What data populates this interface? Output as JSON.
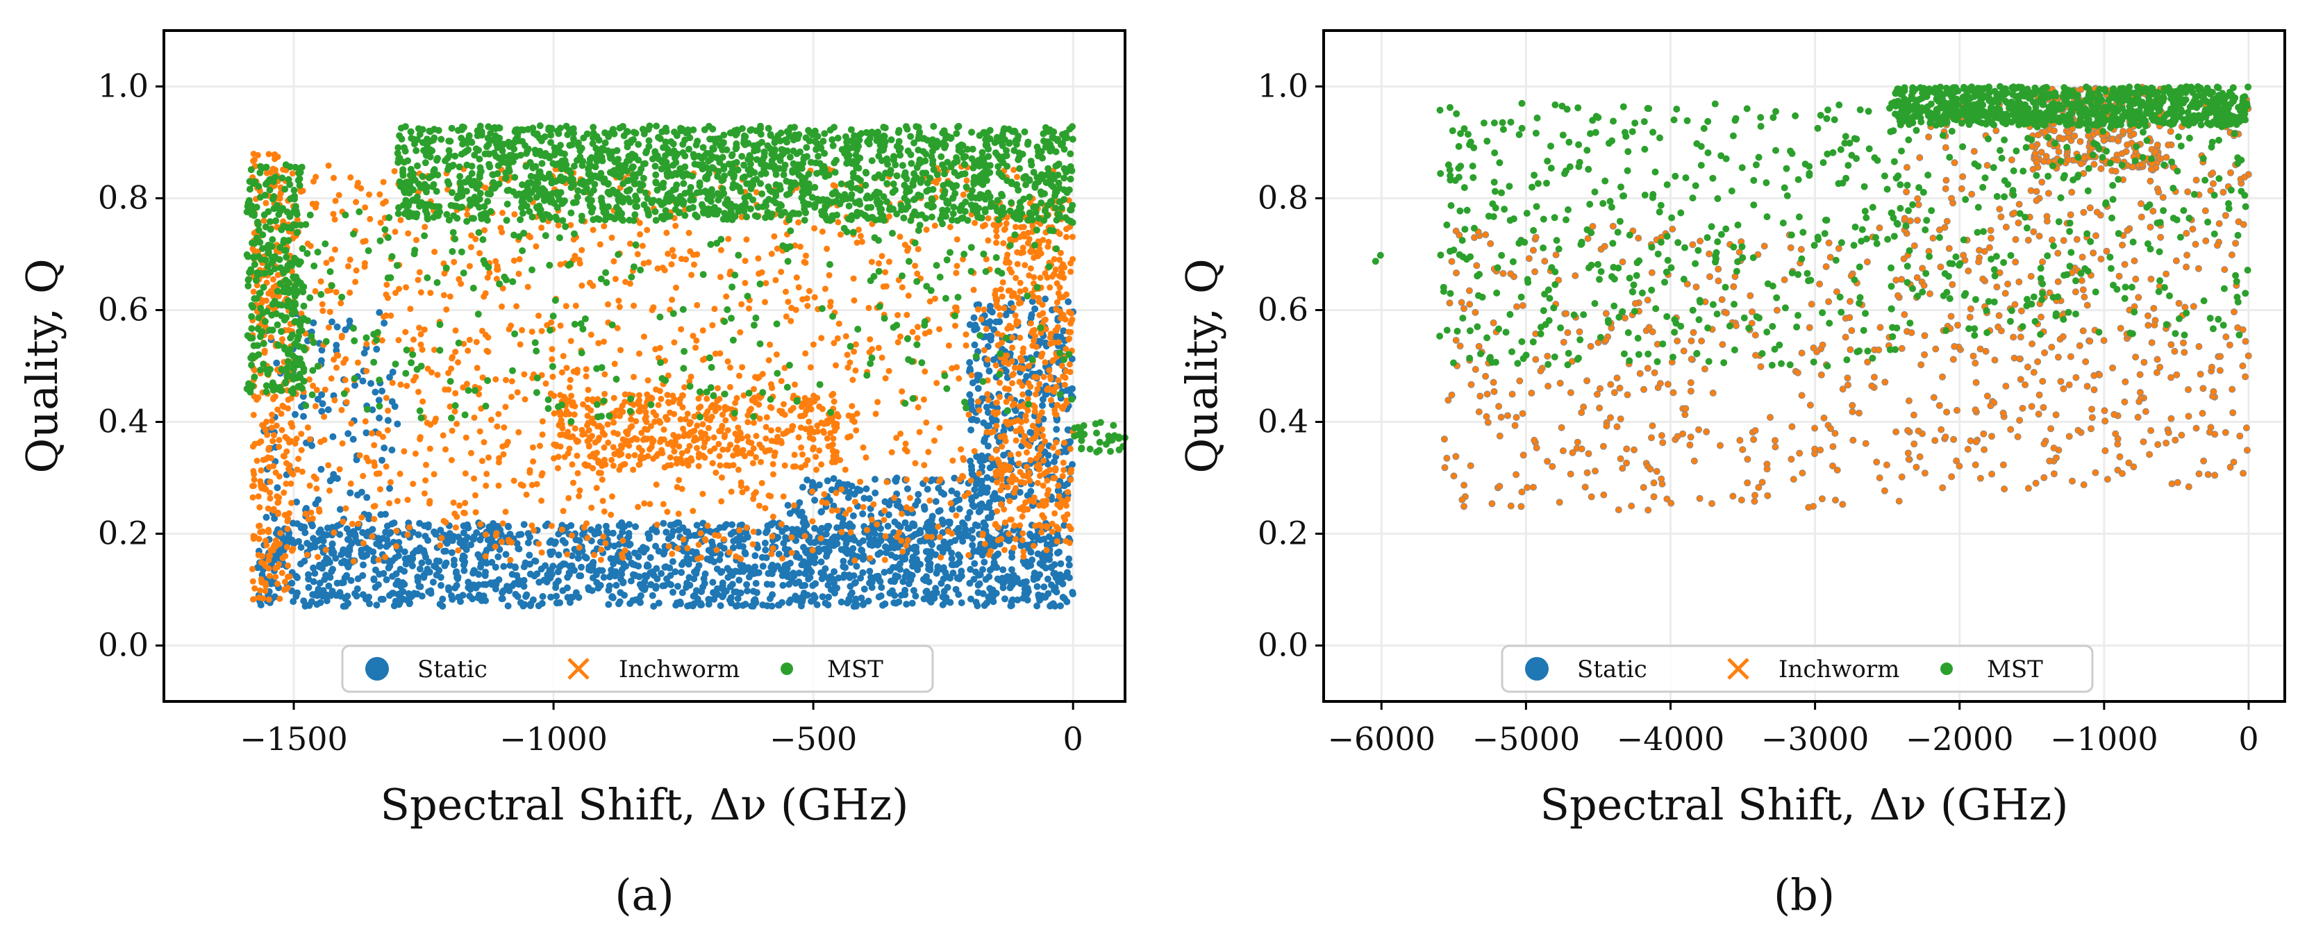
{
  "chart_data": [
    {
      "panel": "a",
      "caption": "(a)",
      "type": "scatter",
      "xlabel": "Spectral Shift, Δν (GHz)",
      "ylabel": "Quality, Q",
      "xlim": [
        -1750,
        100
      ],
      "ylim": [
        -0.1,
        1.1
      ],
      "xticks": [
        -1500,
        -1000,
        -500,
        0
      ],
      "xtick_labels": [
        "−1500",
        "−1000",
        "−500",
        "0"
      ],
      "yticks": [
        0.0,
        0.2,
        0.4,
        0.6,
        0.8,
        1.0
      ],
      "ytick_labels": [
        "0.0",
        "0.2",
        "0.4",
        "0.6",
        "0.8",
        "1.0"
      ],
      "grid": true,
      "legend_position": "bottom-center",
      "series": [
        {
          "name": "Static",
          "marker": "circle",
          "color": "#1f77b4",
          "regions": [
            {
              "x": [
                -1570,
                0
              ],
              "y": [
                0.07,
                0.22
              ],
              "count": 1600
            },
            {
              "x": [
                -550,
                -150
              ],
              "y": [
                0.15,
                0.3
              ],
              "count": 250
            },
            {
              "x": [
                -200,
                0
              ],
              "y": [
                0.25,
                0.62
              ],
              "count": 350
            },
            {
              "x": [
                -1560,
                -1300
              ],
              "y": [
                0.2,
                0.6
              ],
              "count": 120
            }
          ]
        },
        {
          "name": "Inchworm",
          "marker": "x",
          "color": "#ff7f0e",
          "regions": [
            {
              "x": [
                -1580,
                -1500
              ],
              "y": [
                0.08,
                0.88
              ],
              "count": 350
            },
            {
              "x": [
                -1500,
                0
              ],
              "y": [
                0.15,
                0.86
              ],
              "count": 1300
            },
            {
              "x": [
                -1000,
                -450
              ],
              "y": [
                0.32,
                0.45
              ],
              "count": 400
            },
            {
              "x": [
                -150,
                0
              ],
              "y": [
                0.2,
                0.8
              ],
              "count": 350
            }
          ]
        },
        {
          "name": "MST",
          "marker": "dot",
          "color": "#2ca02c",
          "regions": [
            {
              "x": [
                -1300,
                0
              ],
              "y": [
                0.76,
                0.93
              ],
              "count": 1700
            },
            {
              "x": [
                -1590,
                -1480
              ],
              "y": [
                0.45,
                0.86
              ],
              "count": 300
            },
            {
              "x": [
                -1500,
                0
              ],
              "y": [
                0.4,
                0.78
              ],
              "count": 300
            },
            {
              "x": [
                0,
                100
              ],
              "y": [
                0.34,
                0.4
              ],
              "count": 30
            }
          ]
        }
      ]
    },
    {
      "panel": "b",
      "caption": "(b)",
      "type": "scatter",
      "xlabel": "Spectral Shift, Δν (GHz)",
      "ylabel": "Quality, Q",
      "xlim": [
        -6400,
        250
      ],
      "ylim": [
        -0.1,
        1.1
      ],
      "xticks": [
        -6000,
        -5000,
        -4000,
        -3000,
        -2000,
        -1000,
        0
      ],
      "xtick_labels": [
        "−6000",
        "−5000",
        "−4000",
        "−3000",
        "−2000",
        "−1000",
        "0"
      ],
      "yticks": [
        0.0,
        0.2,
        0.4,
        0.6,
        0.8,
        1.0
      ],
      "ytick_labels": [
        "0.0",
        "0.2",
        "0.4",
        "0.6",
        "0.8",
        "1.0"
      ],
      "grid": true,
      "legend_position": "bottom-center",
      "series": [
        {
          "name": "Static",
          "marker": "circle",
          "color": "#1f77b4",
          "regions": []
        },
        {
          "name": "Inchworm",
          "marker": "x",
          "color": "#ff7f0e",
          "regions": [
            {
              "x": [
                -5600,
                -2300
              ],
              "y": [
                0.24,
                0.75
              ],
              "count": 380
            },
            {
              "x": [
                -2400,
                0
              ],
              "y": [
                0.28,
                0.98
              ],
              "count": 500
            },
            {
              "x": [
                -1500,
                -600
              ],
              "y": [
                0.85,
                1.0
              ],
              "count": 250
            }
          ]
        },
        {
          "name": "MST",
          "marker": "dot",
          "color": "#2ca02c",
          "regions": [
            {
              "x": [
                -2450,
                0
              ],
              "y": [
                0.93,
                1.0
              ],
              "count": 900
            },
            {
              "x": [
                -5600,
                -2400
              ],
              "y": [
                0.5,
                0.97
              ],
              "count": 450
            },
            {
              "x": [
                -2400,
                0
              ],
              "y": [
                0.55,
                0.95
              ],
              "count": 250
            },
            {
              "x": [
                -6050,
                -6000
              ],
              "y": [
                0.64,
                0.7
              ],
              "count": 2
            }
          ]
        }
      ]
    }
  ]
}
